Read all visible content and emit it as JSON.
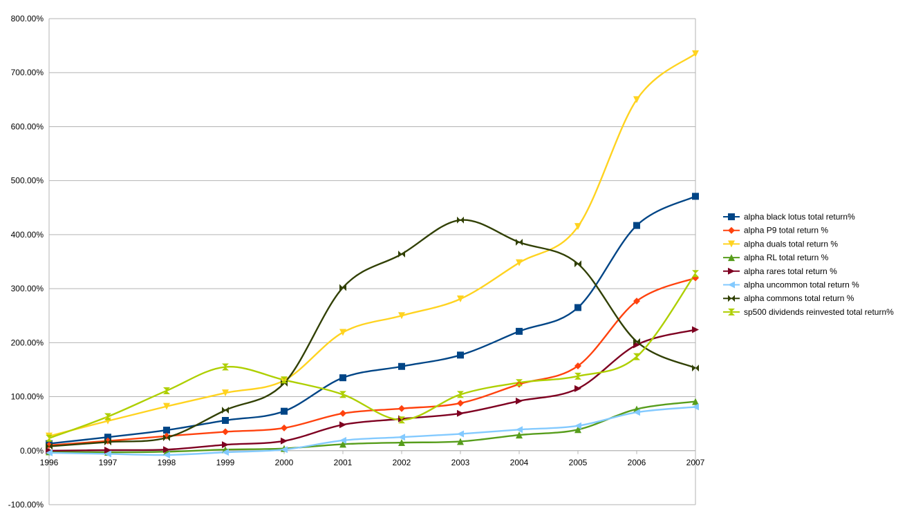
{
  "chart_data": {
    "type": "line",
    "title": "",
    "xlabel": "",
    "ylabel": "",
    "categories": [
      "1996",
      "1997",
      "1998",
      "1999",
      "2000",
      "2001",
      "2002",
      "2003",
      "2004",
      "2005",
      "2006",
      "2007"
    ],
    "ylim": [
      -100,
      800
    ],
    "y_ticks": [
      "800.00%",
      "700.00%",
      "600.00%",
      "500.00%",
      "400.00%",
      "300.00%",
      "200.00%",
      "100.00%",
      "0.00%",
      "-100.00%"
    ],
    "y_tick_values": [
      800,
      700,
      600,
      500,
      400,
      300,
      200,
      100,
      0,
      -100
    ],
    "grid": "horizontal",
    "smooth": true,
    "legend_position": "right",
    "series": [
      {
        "name": "alpha black lotus total return%",
        "color": "#004586",
        "marker": "square",
        "values": [
          13,
          25,
          38,
          56,
          73,
          135,
          156,
          177,
          221,
          265,
          417,
          471
        ]
      },
      {
        "name": "alpha P9 total return %",
        "color": "#ff420e",
        "marker": "diamond",
        "values": [
          10,
          18,
          27,
          35,
          42,
          69,
          78,
          88,
          123,
          157,
          277,
          320
        ]
      },
      {
        "name": "alpha duals total return %",
        "color": "#ffd320",
        "marker": "triangle-down",
        "values": [
          27,
          55,
          82,
          107,
          130,
          219,
          250,
          281,
          348,
          415,
          650,
          735
        ]
      },
      {
        "name": "alpha RL total return %",
        "color": "#579d1c",
        "marker": "triangle-up",
        "values": [
          -2,
          -3,
          -2,
          2,
          4,
          12,
          15,
          17,
          29,
          39,
          77,
          91
        ]
      },
      {
        "name": "alpha rares total return %",
        "color": "#7e0021",
        "marker": "triangle-right",
        "values": [
          0,
          1,
          2,
          11,
          18,
          48,
          59,
          69,
          92,
          115,
          196,
          224
        ]
      },
      {
        "name": "alpha uncommon total return %",
        "color": "#83caff",
        "marker": "triangle-left",
        "values": [
          -4,
          -6,
          -8,
          -3,
          2,
          19,
          25,
          31,
          39,
          46,
          71,
          81
        ]
      },
      {
        "name": "alpha commons total return %",
        "color": "#314004",
        "marker": "bowtie",
        "values": [
          8,
          16,
          24,
          75,
          125,
          302,
          364,
          427,
          386,
          346,
          202,
          153
        ]
      },
      {
        "name": "sp500 dividends reinvested total return%",
        "color": "#aecf00",
        "marker": "hourglass",
        "values": [
          23,
          63,
          111,
          155,
          131,
          104,
          57,
          104,
          126,
          138,
          174,
          328
        ]
      }
    ]
  }
}
